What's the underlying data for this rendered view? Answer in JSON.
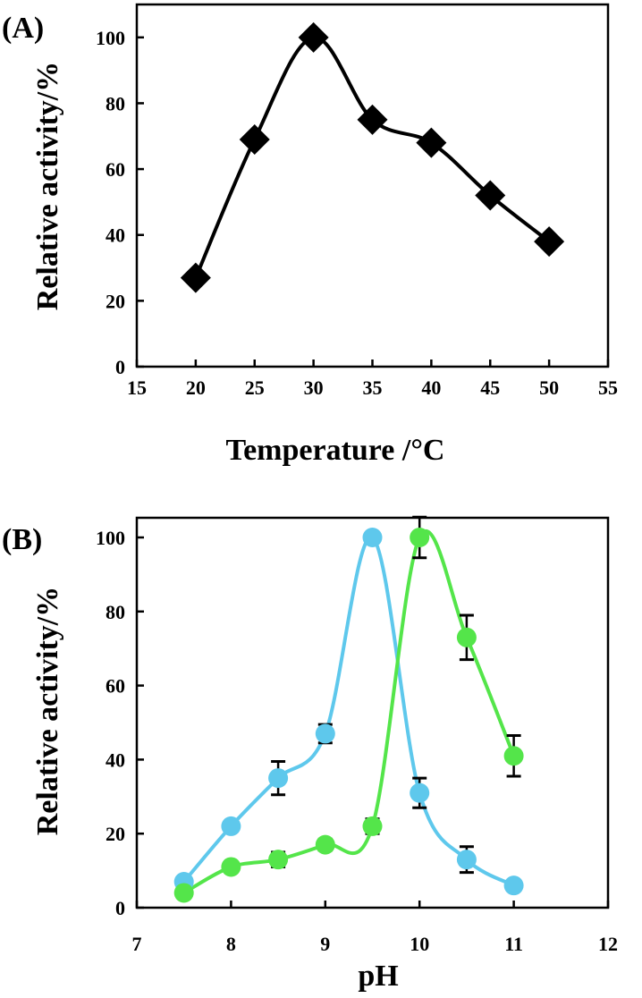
{
  "chart_data": [
    {
      "panel_label": "(A)",
      "type": "line",
      "xlabel": "Temperature /°C",
      "ylabel": "Relative activity/%",
      "xlim": [
        15,
        55
      ],
      "ylim": [
        0,
        110
      ],
      "xticks": [
        "15",
        "20",
        "25",
        "30",
        "35",
        "40",
        "45",
        "50",
        "55"
      ],
      "yticks": [
        "0",
        "20",
        "40",
        "60",
        "80",
        "100"
      ],
      "series": [
        {
          "marker": "diamond",
          "color": "#000000",
          "x": [
            20,
            25,
            30,
            35,
            40,
            45,
            50
          ],
          "y": [
            27,
            69,
            100,
            75,
            68,
            52,
            38
          ]
        }
      ],
      "grid": false
    },
    {
      "panel_label": "(B)",
      "type": "line",
      "xlabel": "pH",
      "ylabel": "Relative activity/%",
      "xlim": [
        7,
        12
      ],
      "ylim": [
        0,
        100
      ],
      "xticks": [
        "7",
        "8",
        "9",
        "10",
        "11",
        "12"
      ],
      "yticks": [
        "0",
        "20",
        "40",
        "60",
        "80",
        "100"
      ],
      "series": [
        {
          "marker": "circle",
          "color": "#5ec8ec",
          "x": [
            7.5,
            8,
            8.5,
            9,
            9.5,
            10,
            10.5,
            11
          ],
          "y": [
            7,
            22,
            35,
            47,
            100,
            31,
            13,
            6
          ],
          "err": [
            0,
            0,
            4.5,
            2.5,
            0,
            4,
            3.5,
            0
          ]
        },
        {
          "marker": "circle",
          "color": "#54e54a",
          "x": [
            7.5,
            8,
            8.5,
            9,
            9.5,
            10,
            10.5,
            11
          ],
          "y": [
            4,
            11,
            13,
            17,
            22,
            100,
            73,
            41
          ],
          "err": [
            0,
            0,
            2,
            1.5,
            2,
            5.5,
            6,
            5.5
          ]
        }
      ],
      "grid": false
    }
  ]
}
